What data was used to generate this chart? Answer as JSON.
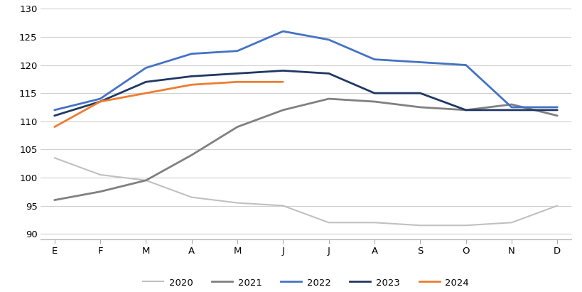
{
  "months": [
    "E",
    "F",
    "M",
    "A",
    "M",
    "J",
    "J",
    "A",
    "S",
    "O",
    "N",
    "D"
  ],
  "series": {
    "2020": [
      103.5,
      100.5,
      99.5,
      96.5,
      95.5,
      95.0,
      92.0,
      92.0,
      91.5,
      91.5,
      92.0,
      95.0
    ],
    "2021": [
      96.0,
      97.5,
      99.5,
      104.0,
      109.0,
      112.0,
      114.0,
      113.5,
      112.5,
      112.0,
      113.0,
      111.0
    ],
    "2022": [
      112.0,
      114.0,
      119.5,
      122.0,
      122.5,
      126.0,
      124.5,
      121.0,
      120.5,
      120.0,
      112.5,
      112.5
    ],
    "2023": [
      111.0,
      113.5,
      117.0,
      118.0,
      118.5,
      119.0,
      118.5,
      115.0,
      115.0,
      112.0,
      112.0,
      112.0
    ],
    "2024": [
      109.0,
      113.5,
      115.0,
      116.5,
      117.0,
      117.0,
      null,
      null,
      null,
      null,
      null,
      null
    ]
  },
  "colors": {
    "2020": "#c0c0c0",
    "2021": "#808080",
    "2022": "#4472c4",
    "2023": "#1f3864",
    "2024": "#ed7d31"
  },
  "linewidths": {
    "2020": 1.5,
    "2021": 2.0,
    "2022": 2.0,
    "2023": 2.0,
    "2024": 2.0
  },
  "ylim": [
    89,
    130
  ],
  "yticks": [
    90,
    95,
    100,
    105,
    110,
    115,
    120,
    125,
    130
  ],
  "legend_order": [
    "2020",
    "2021",
    "2022",
    "2023",
    "2024"
  ],
  "background_color": "#ffffff",
  "grid_color": "#d0d0d0"
}
